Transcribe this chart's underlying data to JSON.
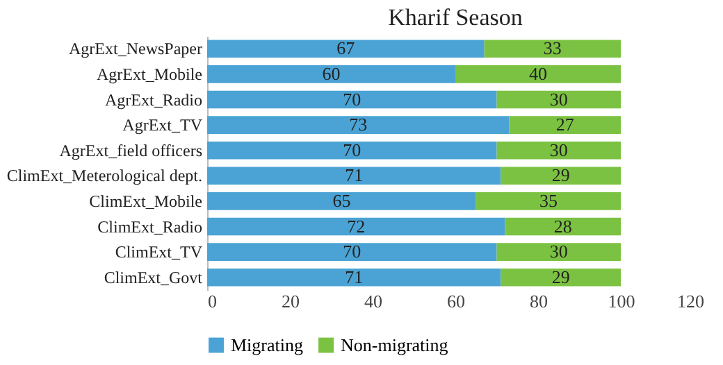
{
  "chart_data": {
    "type": "bar",
    "title": "Kharif Season",
    "orientation": "horizontal",
    "stacked": true,
    "data_labels": true,
    "legend": "bottom",
    "grid": false,
    "categories": [
      "AgrExt_NewsPaper",
      "AgrExt_Mobile",
      "AgrExt_Radio",
      "AgrExt_TV",
      "AgrExt_field officers",
      "ClimExt_Meterological dept.",
      "ClimExt_Mobile",
      "ClimExt_Radio",
      "ClimExt_TV",
      "ClimExt_Govt"
    ],
    "xlim": [
      0,
      120
    ],
    "xticks": [
      0,
      20,
      40,
      60,
      80,
      100,
      120
    ],
    "series": [
      {
        "name": "Migrating",
        "color": "#4aa3d4",
        "values": [
          67,
          60,
          70,
          73,
          70,
          71,
          65,
          72,
          70,
          71
        ]
      },
      {
        "name": "Non-migrating",
        "color": "#7cc242",
        "values": [
          33,
          40,
          30,
          27,
          30,
          29,
          35,
          28,
          30,
          29
        ]
      }
    ]
  }
}
